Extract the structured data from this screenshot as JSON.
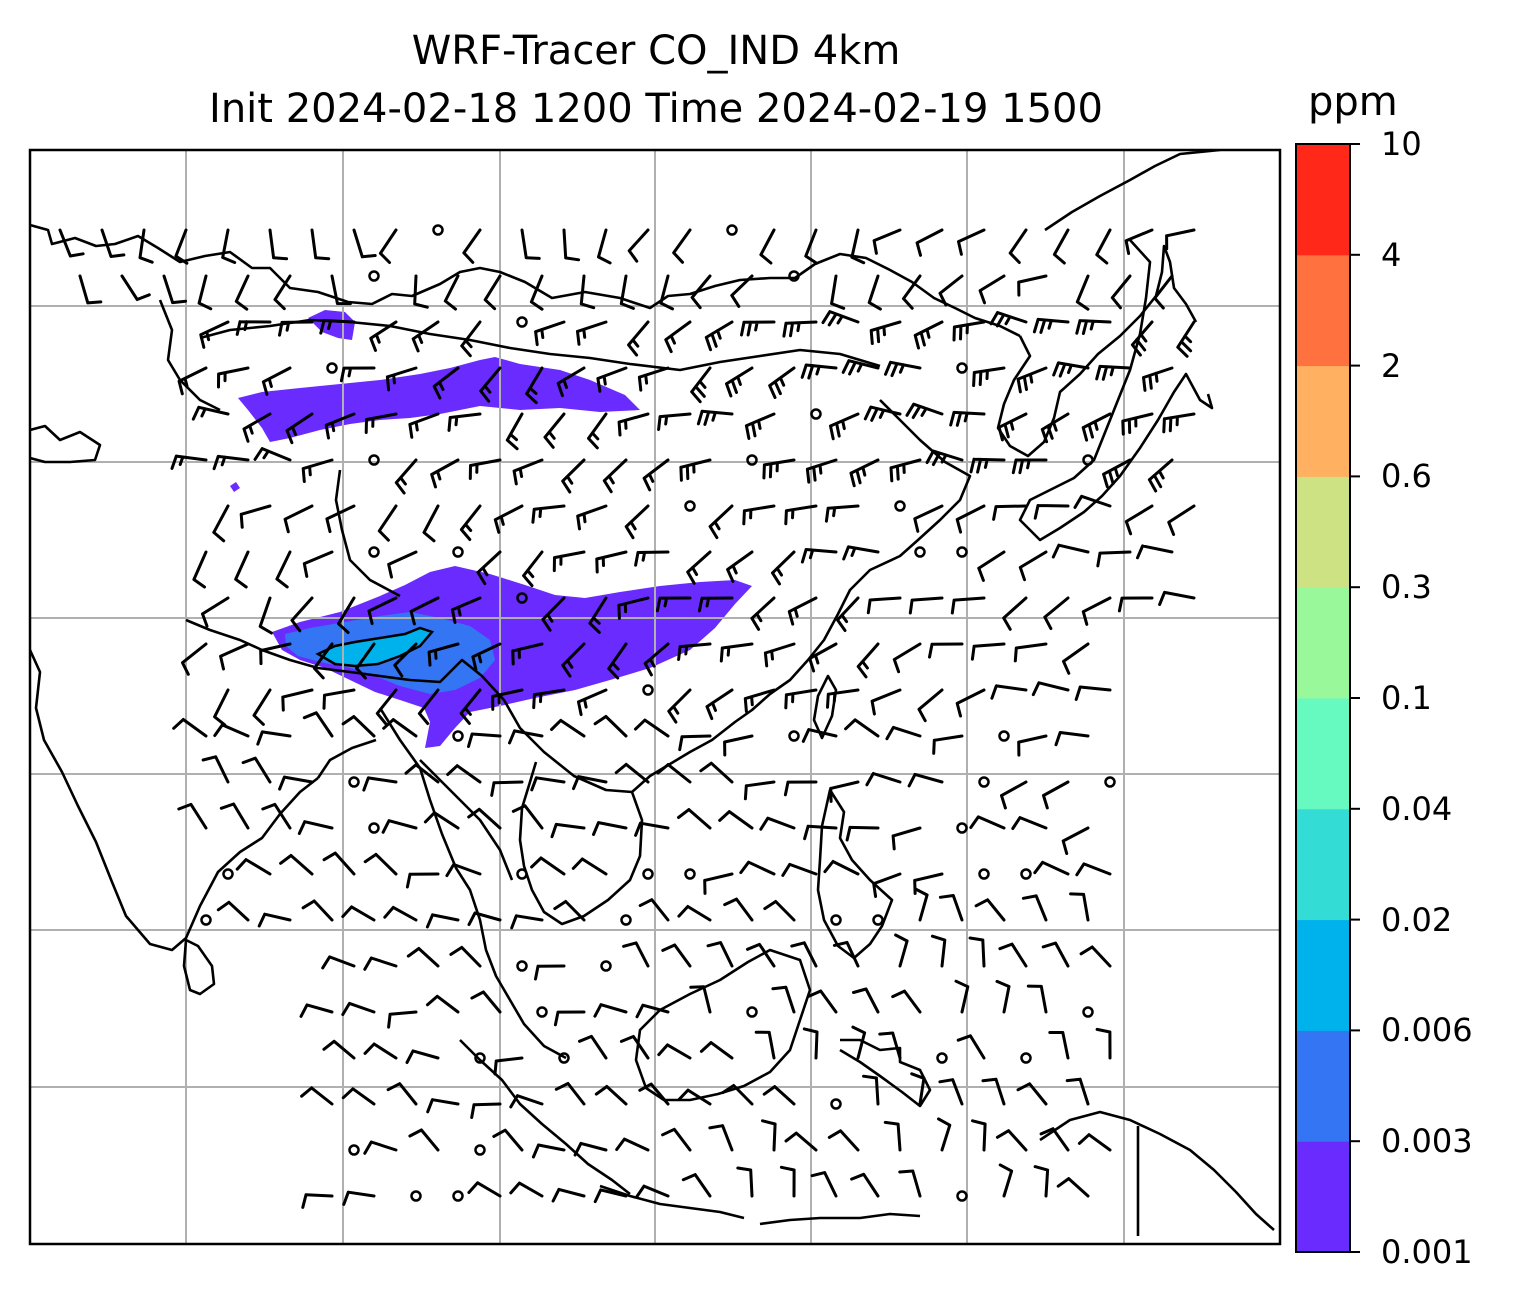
{
  "title": {
    "line1": "WRF-Tracer CO_IND 4km",
    "line2": "Init 2024-02-18 1200 Time 2024-02-19 1500"
  },
  "colorbar": {
    "unit": "ppm",
    "levels": [
      "0.001",
      "0.003",
      "0.006",
      "0.02",
      "0.04",
      "0.1",
      "0.3",
      "0.6",
      "2",
      "4",
      "10"
    ],
    "colors": [
      "#6a2bff",
      "#3475f4",
      "#00b2ec",
      "#33ddd6",
      "#66f9c0",
      "#99f99a",
      "#cde282",
      "#ffb061",
      "#ff713e",
      "#ff2819"
    ]
  },
  "map": {
    "features": [
      "coastlines",
      "country-borders",
      "gridlines",
      "wind-barbs",
      "tracer-plume"
    ],
    "plume_color_low": "#6a2bff",
    "plume_color_mid": "#3475f4",
    "plume_color_high": "#00b2ec",
    "gridline_color": "#b0b0b0"
  }
}
